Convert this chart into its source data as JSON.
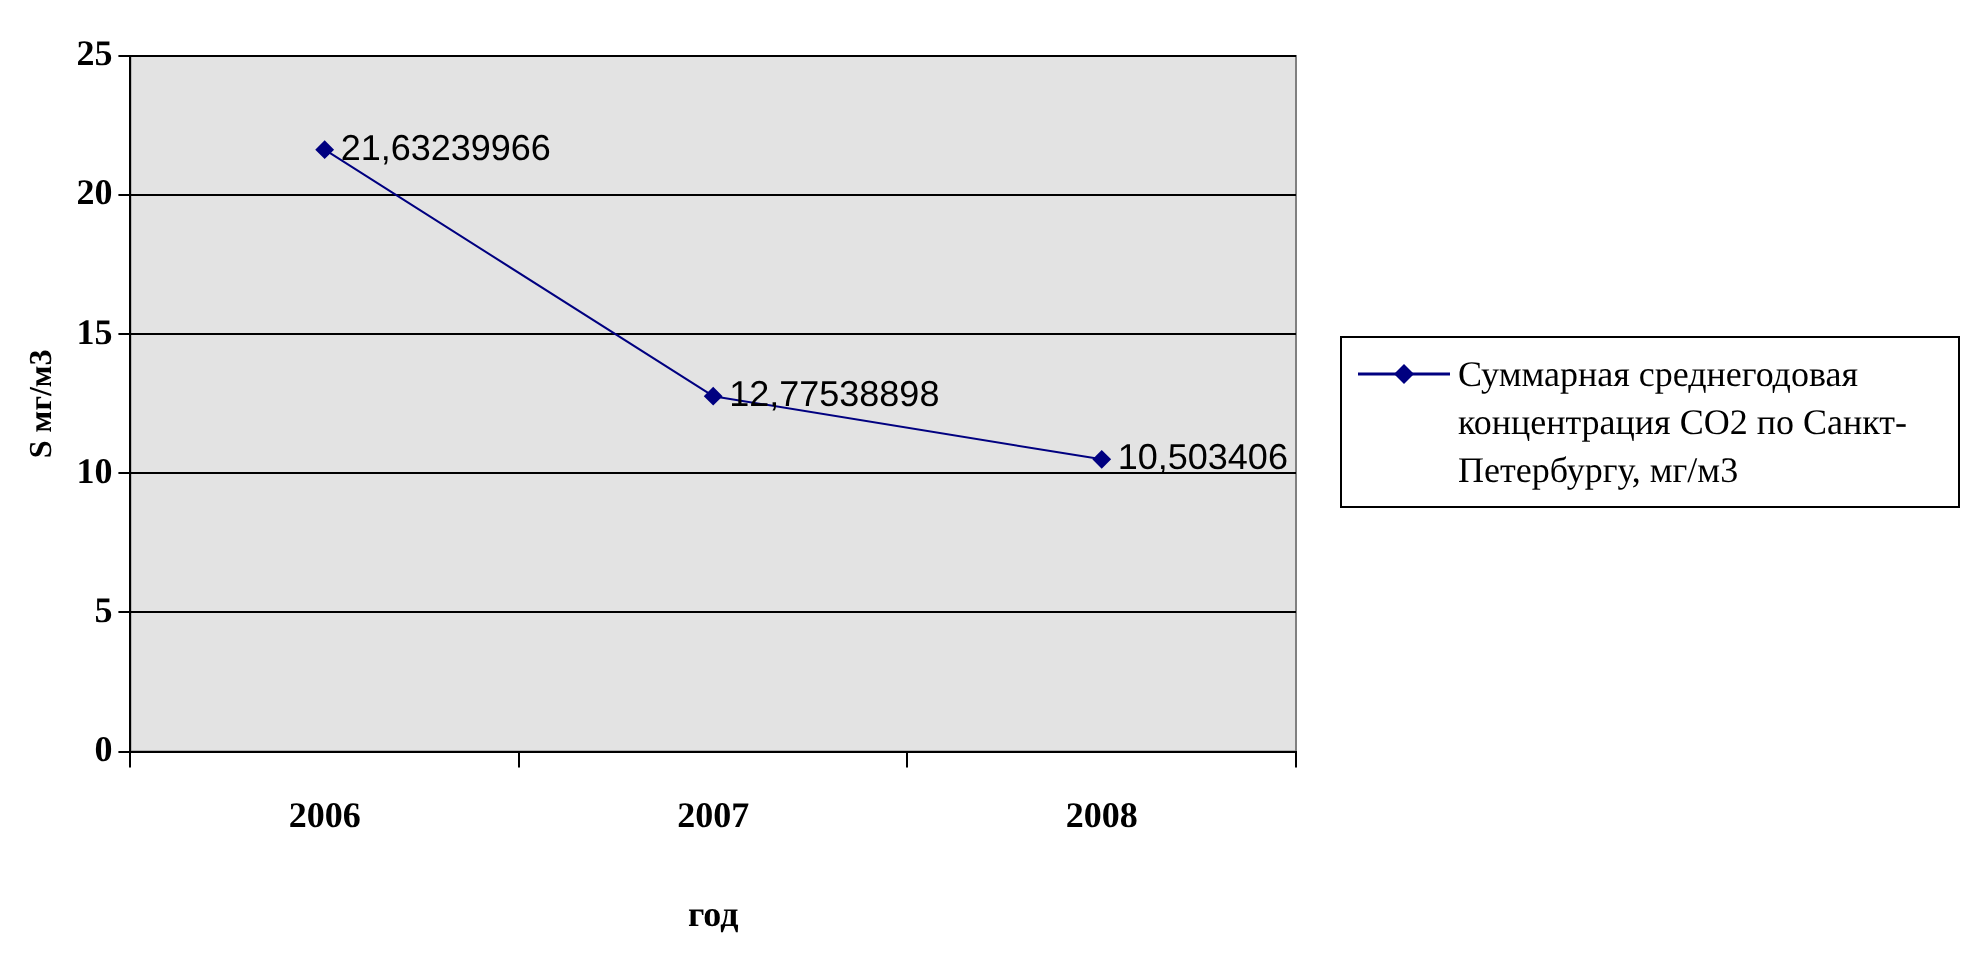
{
  "chart_data": {
    "type": "line",
    "xlabel": "год",
    "ylabel": "S мг/м3",
    "categories": [
      "2006",
      "2007",
      "2008"
    ],
    "series": [
      {
        "name": "Суммарная среднегодовая концентрация CO2 по Санкт-Петербургу, мг/м3",
        "color": "#000080",
        "values": [
          21.63239966,
          12.77538898,
          10.503406
        ],
        "value_labels": [
          "21,63239966",
          "12,77538898",
          "10,503406"
        ]
      }
    ],
    "ylim": [
      0,
      25
    ],
    "yticks": [
      0,
      5,
      10,
      15,
      20,
      25
    ],
    "grid": "y",
    "legend": "right",
    "marker": "diamond",
    "line_style": "solid"
  }
}
